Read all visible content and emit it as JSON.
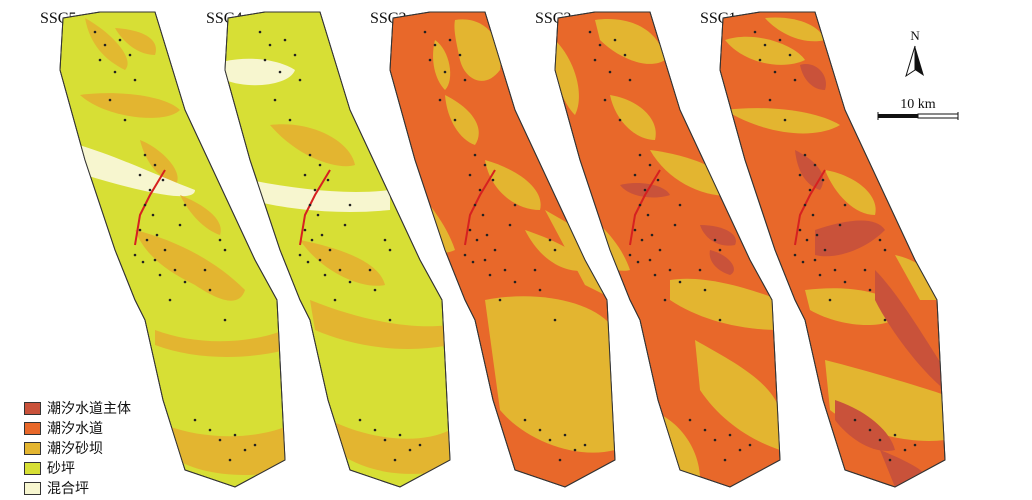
{
  "panels": [
    {
      "title": "SSC5"
    },
    {
      "title": "SSC4"
    },
    {
      "title": "SSC3"
    },
    {
      "title": "SSC2"
    },
    {
      "title": "SSC1"
    }
  ],
  "legend": [
    {
      "label": "潮汐水道主体",
      "color": "#c9523a"
    },
    {
      "label": "潮汐水道",
      "color": "#e8682a"
    },
    {
      "label": "潮汐砂坝",
      "color": "#e3b530"
    },
    {
      "label": "砂坪",
      "color": "#d7df35"
    },
    {
      "label": "混合坪",
      "color": "#f7f6cf"
    }
  ],
  "north_arrow": {
    "label": "N"
  },
  "scale_bar": {
    "label": "10 km"
  }
}
